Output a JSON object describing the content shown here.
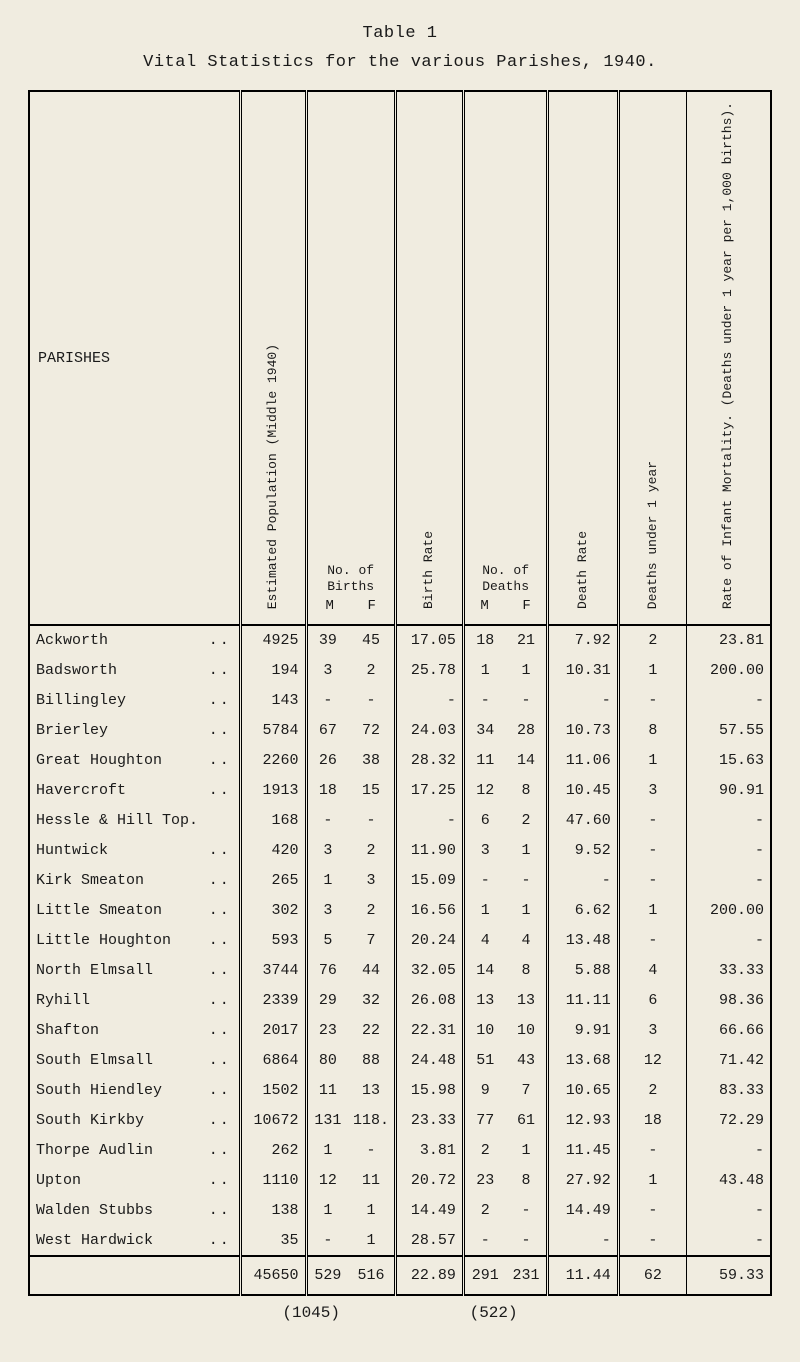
{
  "title": "Table 1",
  "subtitle": "Vital Statistics for the various Parishes, 1940.",
  "columns": {
    "parish": "PARISHES",
    "population": "Estimated Population (Middle 1940)",
    "births": "No. of Births",
    "birth_rate": "Birth Rate",
    "deaths": "No. of Deaths",
    "death_rate": "Death Rate",
    "deaths_u1": "Deaths under 1 year",
    "imr": "Rate of Infant Mortality. (Deaths under 1 year per 1,000 births).",
    "m": "M",
    "f": "F"
  },
  "rows": [
    {
      "parish": "Ackworth",
      "dots": "..",
      "pop": "4925",
      "bm": "39",
      "bf": "45",
      "brate": "17.05",
      "dm": "18",
      "df": "21",
      "drate": "7.92",
      "du1": "2",
      "imr": "23.81"
    },
    {
      "parish": "Badsworth",
      "dots": "..",
      "pop": "194",
      "bm": "3",
      "bf": "2",
      "brate": "25.78",
      "dm": "1",
      "df": "1",
      "drate": "10.31",
      "du1": "1",
      "imr": "200.00"
    },
    {
      "parish": "Billingley",
      "dots": "..",
      "pop": "143",
      "bm": "-",
      "bf": "-",
      "brate": "-",
      "dm": "-",
      "df": "-",
      "drate": "-",
      "du1": "-",
      "imr": "-"
    },
    {
      "parish": "Brierley",
      "dots": "..",
      "pop": "5784",
      "bm": "67",
      "bf": "72",
      "brate": "24.03",
      "dm": "34",
      "df": "28",
      "drate": "10.73",
      "du1": "8",
      "imr": "57.55"
    },
    {
      "parish": "Great Houghton",
      "dots": "..",
      "pop": "2260",
      "bm": "26",
      "bf": "38",
      "brate": "28.32",
      "dm": "11",
      "df": "14",
      "drate": "11.06",
      "du1": "1",
      "imr": "15.63"
    },
    {
      "parish": "Havercroft",
      "dots": "..",
      "pop": "1913",
      "bm": "18",
      "bf": "15",
      "brate": "17.25",
      "dm": "12",
      "df": "8",
      "drate": "10.45",
      "du1": "3",
      "imr": "90.91"
    },
    {
      "parish": "Hessle & Hill Top.",
      "dots": "",
      "pop": "168",
      "bm": "-",
      "bf": "-",
      "brate": "-",
      "dm": "6",
      "df": "2",
      "drate": "47.60",
      "du1": "-",
      "imr": "-"
    },
    {
      "parish": "Huntwick",
      "dots": "..",
      "pop": "420",
      "bm": "3",
      "bf": "2",
      "brate": "11.90",
      "dm": "3",
      "df": "1",
      "drate": "9.52",
      "du1": "-",
      "imr": "-"
    },
    {
      "parish": "Kirk Smeaton",
      "dots": "..",
      "pop": "265",
      "bm": "1",
      "bf": "3",
      "brate": "15.09",
      "dm": "-",
      "df": "-",
      "drate": "-",
      "du1": "-",
      "imr": "-"
    },
    {
      "parish": "Little Smeaton",
      "dots": "..",
      "pop": "302",
      "bm": "3",
      "bf": "2",
      "brate": "16.56",
      "dm": "1",
      "df": "1",
      "drate": "6.62",
      "du1": "1",
      "imr": "200.00"
    },
    {
      "parish": "Little Houghton",
      "dots": "..",
      "pop": "593",
      "bm": "5",
      "bf": "7",
      "brate": "20.24",
      "dm": "4",
      "df": "4",
      "drate": "13.48",
      "du1": "-",
      "imr": "-"
    },
    {
      "parish": "North Elmsall",
      "dots": "..",
      "pop": "3744",
      "bm": "76",
      "bf": "44",
      "brate": "32.05",
      "dm": "14",
      "df": "8",
      "drate": "5.88",
      "du1": "4",
      "imr": "33.33"
    },
    {
      "parish": "Ryhill",
      "dots": "..",
      "pop": "2339",
      "bm": "29",
      "bf": "32",
      "brate": "26.08",
      "dm": "13",
      "df": "13",
      "drate": "11.11",
      "du1": "6",
      "imr": "98.36"
    },
    {
      "parish": "Shafton",
      "dots": "..",
      "pop": "2017",
      "bm": "23",
      "bf": "22",
      "brate": "22.31",
      "dm": "10",
      "df": "10",
      "drate": "9.91",
      "du1": "3",
      "imr": "66.66"
    },
    {
      "parish": "South Elmsall",
      "dots": "..",
      "pop": "6864",
      "bm": "80",
      "bf": "88",
      "brate": "24.48",
      "dm": "51",
      "df": "43",
      "drate": "13.68",
      "du1": "12",
      "imr": "71.42"
    },
    {
      "parish": "South Hiendley",
      "dots": "..",
      "pop": "1502",
      "bm": "11",
      "bf": "13",
      "brate": "15.98",
      "dm": "9",
      "df": "7",
      "drate": "10.65",
      "du1": "2",
      "imr": "83.33"
    },
    {
      "parish": "South Kirkby",
      "dots": "..",
      "pop": "10672",
      "bm": "131",
      "bf": "118.",
      "brate": "23.33",
      "dm": "77",
      "df": "61",
      "drate": "12.93",
      "du1": "18",
      "imr": "72.29"
    },
    {
      "parish": "Thorpe Audlin",
      "dots": "..",
      "pop": "262",
      "bm": "1",
      "bf": "-",
      "brate": "3.81",
      "dm": "2",
      "df": "1",
      "drate": "11.45",
      "du1": "-",
      "imr": "-"
    },
    {
      "parish": "Upton",
      "dots": "..",
      "pop": "1110",
      "bm": "12",
      "bf": "11",
      "brate": "20.72",
      "dm": "23",
      "df": "8",
      "drate": "27.92",
      "du1": "1",
      "imr": "43.48"
    },
    {
      "parish": "Walden Stubbs",
      "dots": "..",
      "pop": "138",
      "bm": "1",
      "bf": "1",
      "brate": "14.49",
      "dm": "2",
      "df": "-",
      "drate": "14.49",
      "du1": "-",
      "imr": "-"
    },
    {
      "parish": "West Hardwick",
      "dots": "..",
      "pop": "35",
      "bm": "-",
      "bf": "1",
      "brate": "28.57",
      "dm": "-",
      "df": "-",
      "drate": "-",
      "du1": "-",
      "imr": "-"
    }
  ],
  "totals": {
    "pop": "45650",
    "bm": "529",
    "bf": "516",
    "brate": "22.89",
    "dm": "291",
    "df": "231",
    "drate": "11.44",
    "du1": "62",
    "imr": "59.33"
  },
  "footer": {
    "left": "(1045)",
    "right": "(522)"
  }
}
